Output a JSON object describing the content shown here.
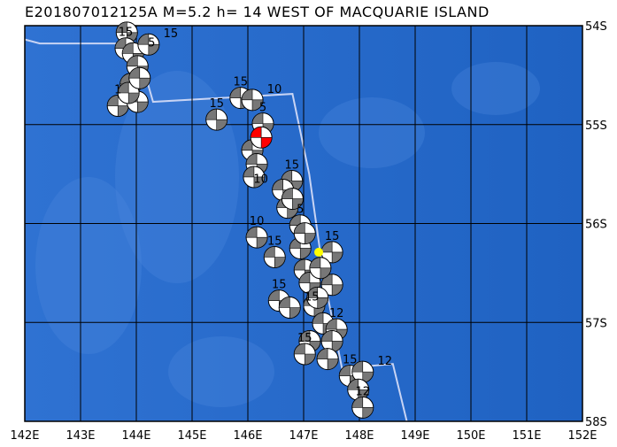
{
  "title": "E201807012125A M=5.2 h= 14 WEST OF MACQUARIE ISLAND",
  "map": {
    "lon_range": [
      142,
      152
    ],
    "lat_range": [
      -58,
      -54
    ],
    "lon_ticks": [
      "142E",
      "143E",
      "144E",
      "145E",
      "146E",
      "147E",
      "148E",
      "149E",
      "150E",
      "151E",
      "152E"
    ],
    "lat_ticks": [
      "54S",
      "55S",
      "56S",
      "57S",
      "58S"
    ],
    "colors": {
      "ocean": "#2f72d2",
      "shallow": "#4a86dc",
      "deep": "#1f62c2",
      "boundary": "#c8d4f4",
      "compression": "#777777",
      "grid": "#000000",
      "main_event": "#ff0000",
      "epicenter": "#ffff00"
    },
    "plate_boundary": [
      [
        142,
        -54.14
      ],
      [
        142.27,
        -54.18
      ],
      [
        144.0,
        -54.18
      ],
      [
        144.3,
        -54.77
      ],
      [
        146.8,
        -54.69
      ],
      [
        147.1,
        -55.5
      ],
      [
        147.35,
        -56.5
      ],
      [
        147.7,
        -57.5
      ],
      [
        148.0,
        -57.45
      ],
      [
        148.6,
        -57.42
      ],
      [
        148.85,
        -58
      ]
    ],
    "epicenter": [
      147.27,
      -56.29
    ],
    "events": [
      {
        "lon": 143.83,
        "lat": -54.07,
        "depth": ""
      },
      {
        "lon": 143.81,
        "lat": -54.23,
        "depth": "15"
      },
      {
        "lon": 143.94,
        "lat": -54.28,
        "depth": "5"
      },
      {
        "lon": 144.22,
        "lat": -54.19,
        "depth": "15"
      },
      {
        "lon": 144.02,
        "lat": -54.41,
        "depth": ""
      },
      {
        "lon": 143.9,
        "lat": -54.59,
        "depth": ""
      },
      {
        "lon": 143.67,
        "lat": -54.81,
        "depth": "1"
      },
      {
        "lon": 144.02,
        "lat": -54.77,
        "depth": ""
      },
      {
        "lon": 143.86,
        "lat": -54.68,
        "depth": ""
      },
      {
        "lon": 144.06,
        "lat": -54.53,
        "depth": ""
      },
      {
        "lon": 145.87,
        "lat": -54.73,
        "depth": "15"
      },
      {
        "lon": 146.08,
        "lat": -54.75,
        "depth": "10"
      },
      {
        "lon": 145.44,
        "lat": -54.95,
        "depth": "15"
      },
      {
        "lon": 146.27,
        "lat": -54.99,
        "depth": "5"
      },
      {
        "lon": 146.08,
        "lat": -55.26,
        "depth": ""
      },
      {
        "lon": 146.16,
        "lat": -55.4,
        "depth": ""
      },
      {
        "lon": 146.11,
        "lat": -55.53,
        "depth": ""
      },
      {
        "lon": 146.79,
        "lat": -55.57,
        "depth": "15"
      },
      {
        "lon": 146.63,
        "lat": -55.66,
        "depth": "10"
      },
      {
        "lon": 146.71,
        "lat": -55.84,
        "depth": ""
      },
      {
        "lon": 146.94,
        "lat": -56.02,
        "depth": "5"
      },
      {
        "lon": 146.16,
        "lat": -56.14,
        "depth": "10"
      },
      {
        "lon": 146.48,
        "lat": -56.34,
        "depth": "15"
      },
      {
        "lon": 146.94,
        "lat": -56.25,
        "depth": ""
      },
      {
        "lon": 147.51,
        "lat": -56.29,
        "depth": "15"
      },
      {
        "lon": 147.02,
        "lat": -56.47,
        "depth": ""
      },
      {
        "lon": 147.51,
        "lat": -56.62,
        "depth": ""
      },
      {
        "lon": 147.11,
        "lat": -56.6,
        "depth": ""
      },
      {
        "lon": 146.56,
        "lat": -56.78,
        "depth": "15"
      },
      {
        "lon": 146.75,
        "lat": -56.85,
        "depth": "15"
      },
      {
        "lon": 147.19,
        "lat": -56.83,
        "depth": ""
      },
      {
        "lon": 147.35,
        "lat": -57.01,
        "depth": ""
      },
      {
        "lon": 147.59,
        "lat": -57.07,
        "depth": "12"
      },
      {
        "lon": 147.11,
        "lat": -57.19,
        "depth": ""
      },
      {
        "lon": 147.51,
        "lat": -57.19,
        "depth": ""
      },
      {
        "lon": 147.02,
        "lat": -57.32,
        "depth": "15"
      },
      {
        "lon": 147.43,
        "lat": -57.37,
        "depth": ""
      },
      {
        "lon": 147.83,
        "lat": -57.54,
        "depth": "15"
      },
      {
        "lon": 148.06,
        "lat": -57.5,
        "depth": "12"
      },
      {
        "lon": 147.98,
        "lat": -57.68,
        "depth": ""
      },
      {
        "lon": 148.06,
        "lat": -57.86,
        "depth": "12"
      },
      {
        "lon": 147.02,
        "lat": -56.1,
        "depth": ""
      },
      {
        "lon": 147.3,
        "lat": -56.45,
        "depth": ""
      },
      {
        "lon": 147.25,
        "lat": -56.75,
        "depth": ""
      },
      {
        "lon": 146.8,
        "lat": -55.75,
        "depth": ""
      }
    ],
    "main_event": {
      "lon": 146.24,
      "lat": -55.13,
      "depth": ""
    }
  }
}
